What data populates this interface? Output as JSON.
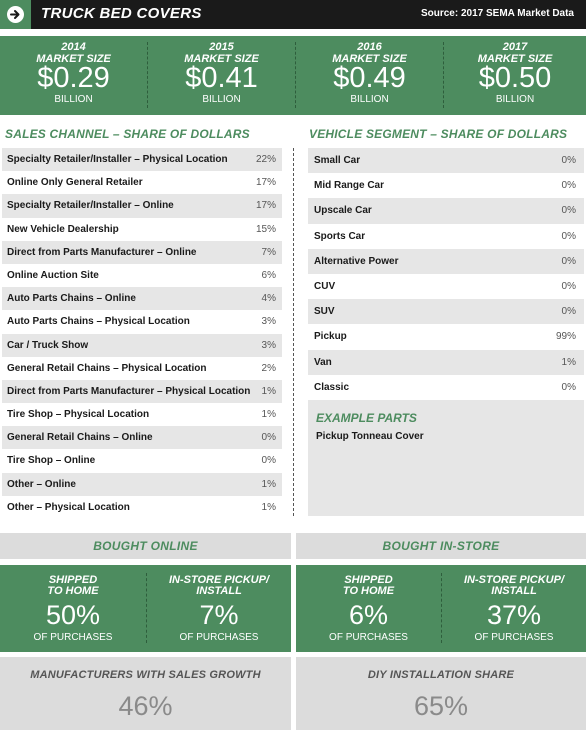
{
  "header": {
    "title": "TRUCK BED COVERS",
    "source": "Source: 2017 SEMA Market Data",
    "icon": "arrow-right-icon"
  },
  "market": [
    {
      "year": "2014",
      "label": "MARKET SIZE",
      "value": "$0.29",
      "unit": "BILLION"
    },
    {
      "year": "2015",
      "label": "MARKET SIZE",
      "value": "$0.41",
      "unit": "BILLION"
    },
    {
      "year": "2016",
      "label": "MARKET SIZE",
      "value": "$0.49",
      "unit": "BILLION"
    },
    {
      "year": "2017",
      "label": "MARKET SIZE",
      "value": "$0.50",
      "unit": "BILLION"
    }
  ],
  "sales_channel": {
    "heading": "SALES CHANNEL – SHARE OF DOLLARS",
    "rows": [
      {
        "name": "Specialty Retailer/Installer – Physical Location",
        "pct": "22%"
      },
      {
        "name": "Online Only General Retailer",
        "pct": "17%"
      },
      {
        "name": "Specialty Retailer/Installer – Online",
        "pct": "17%"
      },
      {
        "name": "New Vehicle Dealership",
        "pct": "15%"
      },
      {
        "name": "Direct from Parts Manufacturer – Online",
        "pct": "7%"
      },
      {
        "name": "Online Auction Site",
        "pct": "6%"
      },
      {
        "name": "Auto Parts Chains – Online",
        "pct": "4%"
      },
      {
        "name": "Auto Parts Chains – Physical Location",
        "pct": "3%"
      },
      {
        "name": "Car / Truck Show",
        "pct": "3%"
      },
      {
        "name": "General Retail Chains – Physical Location",
        "pct": "2%"
      },
      {
        "name": "Direct from Parts Manufacturer – Physical Location",
        "pct": "1%"
      },
      {
        "name": "Tire Shop – Physical Location",
        "pct": "1%"
      },
      {
        "name": "General Retail Chains – Online",
        "pct": "0%"
      },
      {
        "name": "Tire Shop – Online",
        "pct": "0%"
      },
      {
        "name": "Other – Online",
        "pct": "1%"
      },
      {
        "name": "Other – Physical Location",
        "pct": "1%"
      }
    ]
  },
  "vehicle_segment": {
    "heading": "VEHICLE SEGMENT – SHARE OF DOLLARS",
    "rows": [
      {
        "name": "Small Car",
        "pct": "0%"
      },
      {
        "name": "Mid Range Car",
        "pct": "0%"
      },
      {
        "name": "Upscale Car",
        "pct": "0%"
      },
      {
        "name": "Sports Car",
        "pct": "0%"
      },
      {
        "name": "Alternative Power",
        "pct": "0%"
      },
      {
        "name": "CUV",
        "pct": "0%"
      },
      {
        "name": "SUV",
        "pct": "0%"
      },
      {
        "name": "Pickup",
        "pct": "99%"
      },
      {
        "name": "Van",
        "pct": "1%"
      },
      {
        "name": "Classic",
        "pct": "0%"
      }
    ],
    "example_heading": "EXAMPLE PARTS",
    "example_part": "Pickup Tonneau Cover"
  },
  "bought_online": {
    "heading": "BOUGHT ONLINE",
    "shipped": {
      "line1": "SHIPPED",
      "line2": "TO HOME",
      "value": "50%",
      "sub": "OF PURCHASES"
    },
    "pickup": {
      "line1": "IN-STORE PICKUP/",
      "line2": "INSTALL",
      "value": "7%",
      "sub": "OF PURCHASES"
    }
  },
  "bought_instore": {
    "heading": "BOUGHT IN-STORE",
    "shipped": {
      "line1": "SHIPPED",
      "line2": "TO HOME",
      "value": "6%",
      "sub": "OF PURCHASES"
    },
    "pickup": {
      "line1": "IN-STORE PICKUP/",
      "line2": "INSTALL",
      "value": "37%",
      "sub": "OF PURCHASES"
    }
  },
  "manufacturers_growth": {
    "heading": "MANUFACTURERS WITH SALES GROWTH",
    "value": "46%"
  },
  "diy_installation": {
    "heading": "DIY INSTALLATION SHARE",
    "value": "65%"
  },
  "colors": {
    "green": "#4d8c5f",
    "header_bg": "#1a1a1a",
    "row_shade": "#e6e6e6",
    "gray_panel": "#dcdcdc"
  }
}
